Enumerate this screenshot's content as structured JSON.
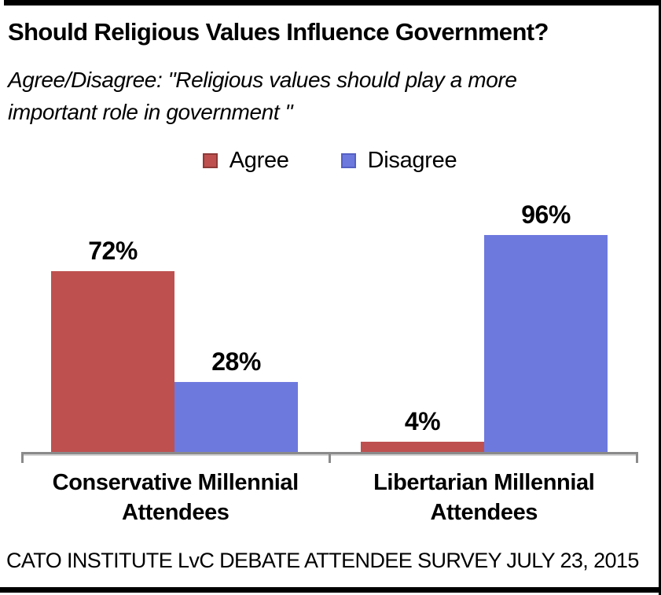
{
  "chart_data": {
    "type": "bar",
    "title": "Should Religious Values Influence Government?",
    "subtitle": "Agree/Disagree: \"Religious values should play a more important role in government \"",
    "annotation": "CATO INSTITUTE LvC DEBATE ATTENDEE SURVEY JULY 23, 2015",
    "categories": [
      "Conservative Millennial Attendees",
      "Libertarian Millennial Attendees"
    ],
    "categories_lines": [
      [
        "Conservative Millennial",
        "Attendees"
      ],
      [
        "Libertarian Millennial",
        "Attendees"
      ]
    ],
    "series": [
      {
        "name": "Agree",
        "color": "#be5050",
        "border_color": "#8e3a38",
        "values": [
          72,
          4
        ],
        "labels": [
          "72%",
          "4%"
        ]
      },
      {
        "name": "Disagree",
        "color": "#6e79de",
        "border_color": "#5560c4",
        "values": [
          28,
          96
        ],
        "labels": [
          "28%",
          "96%"
        ]
      }
    ],
    "xlabel": "",
    "ylabel": "",
    "ylim": [
      0,
      100
    ],
    "grid": false,
    "legend_position": "top-center",
    "value_labels": "percent-above-bars",
    "axis_color": "#8a8a8a"
  }
}
